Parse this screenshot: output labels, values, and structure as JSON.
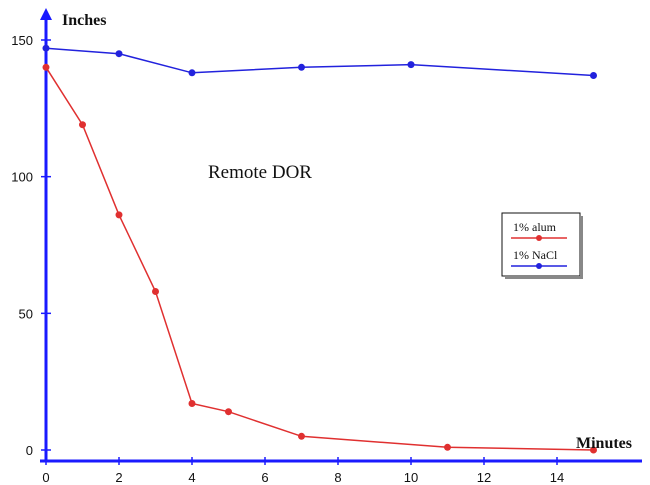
{
  "chart_data": {
    "type": "line",
    "title": "Remote DOR",
    "xlabel": "Minutes",
    "ylabel": "Inches",
    "xlim": [
      0,
      15.5
    ],
    "ylim": [
      -3,
      155
    ],
    "x_ticks": [
      0,
      2,
      4,
      6,
      8,
      10,
      12,
      14
    ],
    "y_ticks": [
      0,
      50,
      100,
      150
    ],
    "grid": false,
    "legend_position": "right",
    "series": [
      {
        "name": "1% alum",
        "color": "#e03030",
        "points": [
          [
            0,
            140
          ],
          [
            1,
            119
          ],
          [
            2,
            86
          ],
          [
            3,
            58
          ],
          [
            4,
            17
          ],
          [
            5,
            14
          ],
          [
            7,
            5
          ],
          [
            11,
            1
          ],
          [
            15,
            0
          ]
        ]
      },
      {
        "name": "1% NaCl",
        "color": "#2222dd",
        "points": [
          [
            0,
            147
          ],
          [
            2,
            145
          ],
          [
            4,
            138
          ],
          [
            7,
            140
          ],
          [
            10,
            141
          ],
          [
            15,
            137
          ]
        ]
      }
    ]
  },
  "colors": {
    "axis": "#1a1aff"
  }
}
